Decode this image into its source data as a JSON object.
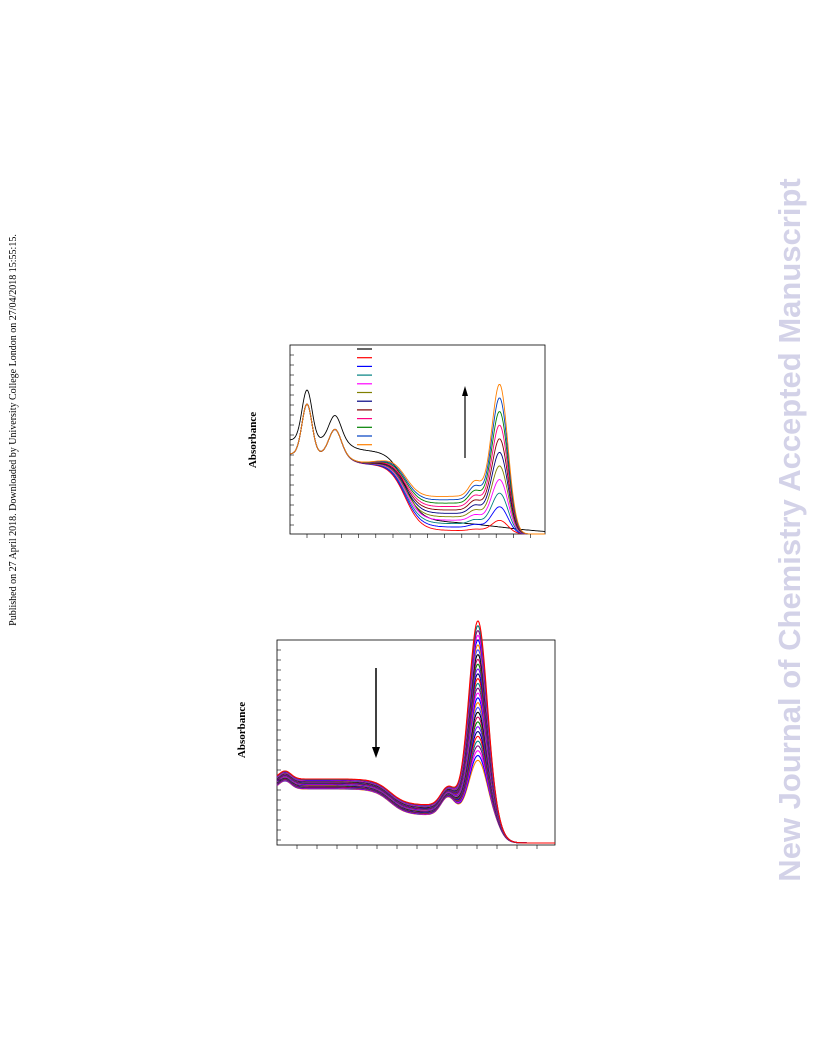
{
  "side_note": "Published on 27 April 2018. Downloaded by University College London on 27/04/2018 15:55:15.",
  "watermark": "New Journal of Chemistry Accepted Manuscript",
  "figures": [
    {
      "y_label": "Absorbance"
    },
    {
      "y_label": "Absorbance"
    }
  ]
}
